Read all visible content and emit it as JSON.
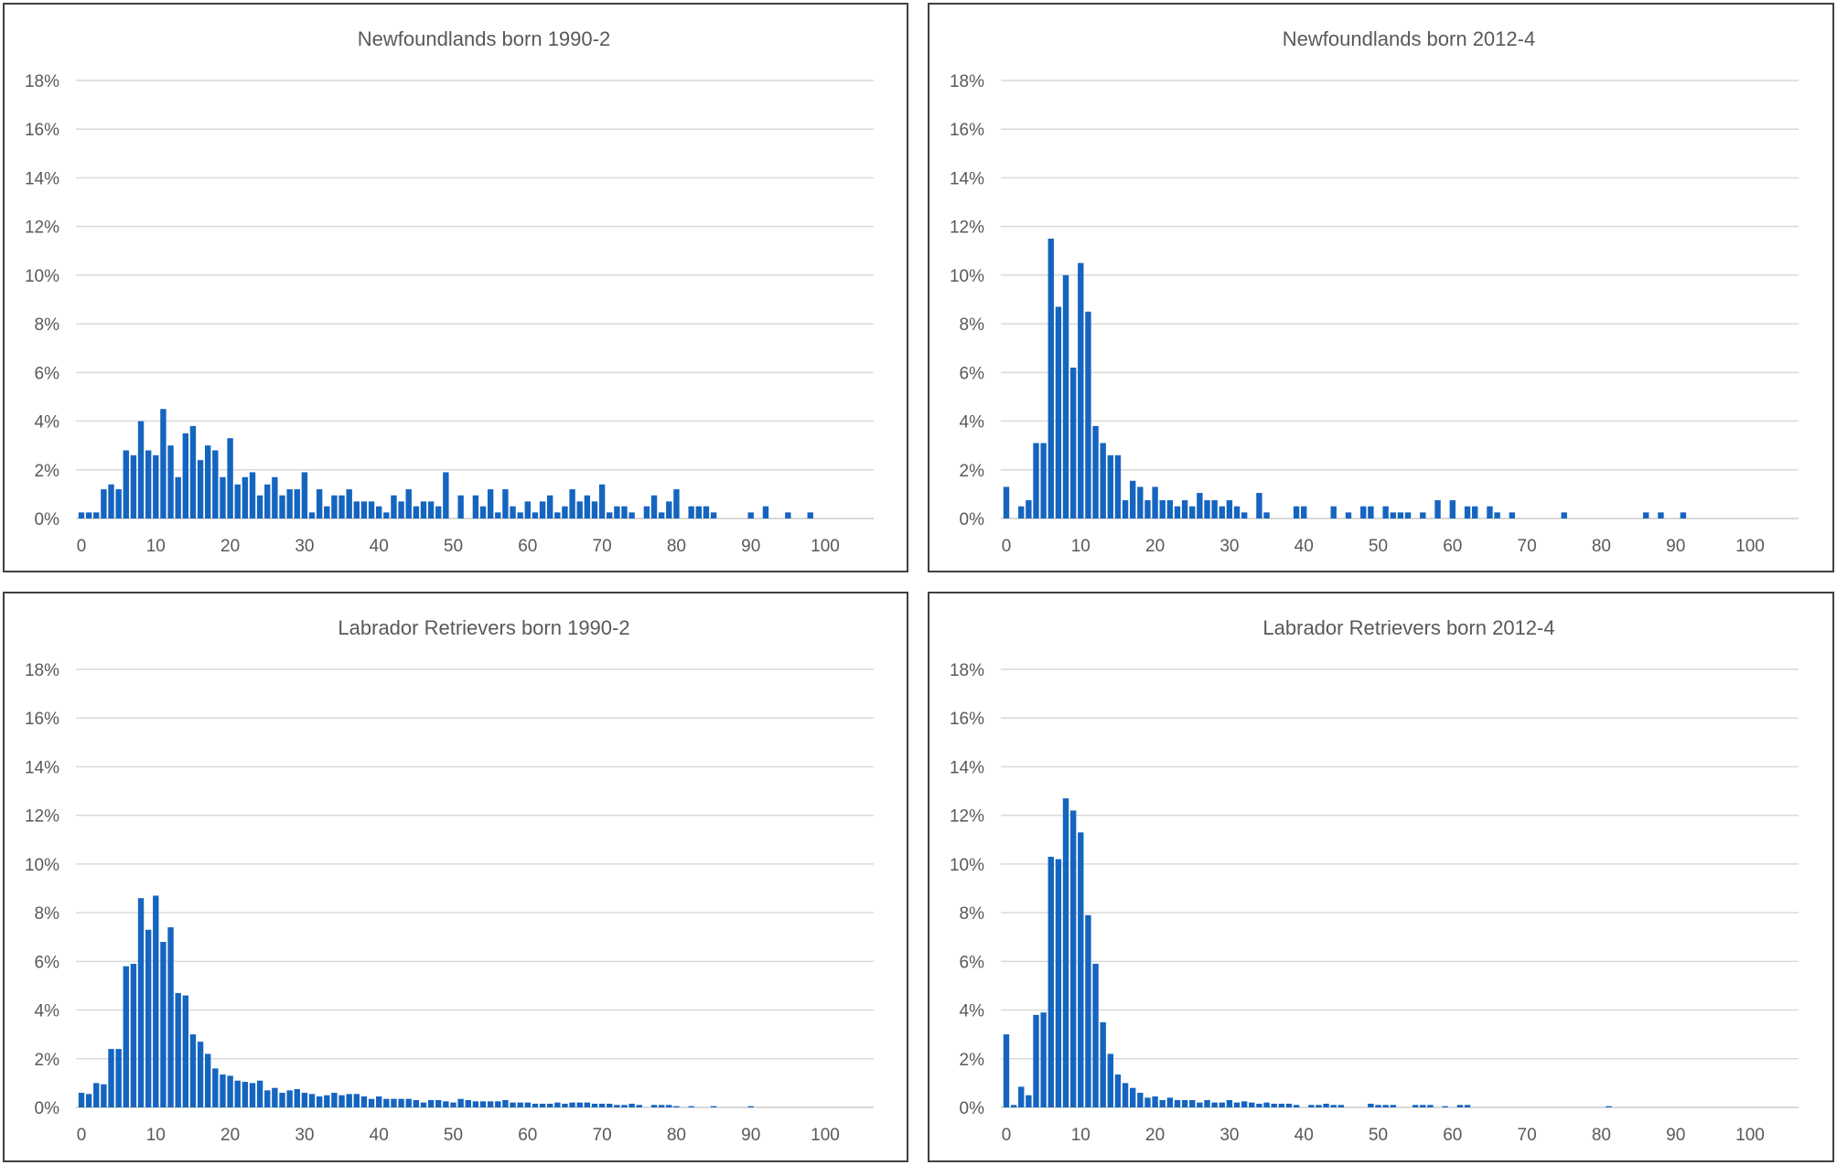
{
  "colors": {
    "bar": "#1565c0",
    "grid": "#d9d9d9",
    "text": "#595959",
    "border": "#404040"
  },
  "chart_data": [
    {
      "type": "bar",
      "title": "Newfoundlands born 1990-2",
      "xlabel": "",
      "ylabel": "",
      "ylim": [
        0,
        18
      ],
      "xlim": [
        0,
        100
      ],
      "x_ticks": [
        "0",
        "10",
        "20",
        "30",
        "40",
        "50",
        "60",
        "70",
        "80",
        "90",
        "100"
      ],
      "y_ticks": [
        "0%",
        "2%",
        "4%",
        "6%",
        "8%",
        "10%",
        "12%",
        "14%",
        "16%",
        "18%"
      ],
      "grid": true,
      "legend": "none",
      "x": [
        0,
        1,
        2,
        3,
        4,
        5,
        6,
        7,
        8,
        9,
        10,
        11,
        12,
        13,
        14,
        15,
        16,
        17,
        18,
        19,
        20,
        21,
        22,
        23,
        24,
        25,
        26,
        27,
        28,
        29,
        30,
        31,
        32,
        33,
        34,
        35,
        36,
        37,
        38,
        39,
        40,
        41,
        42,
        43,
        44,
        45,
        46,
        47,
        48,
        49,
        50,
        51,
        52,
        53,
        54,
        55,
        56,
        57,
        58,
        59,
        60,
        61,
        62,
        63,
        64,
        65,
        66,
        67,
        68,
        69,
        70,
        71,
        72,
        73,
        74,
        75,
        76,
        77,
        78,
        79,
        80,
        81,
        82,
        83,
        84,
        85,
        86,
        87,
        88,
        89,
        90,
        91,
        92,
        93,
        94,
        95,
        96,
        97,
        98,
        99,
        100
      ],
      "values": [
        0.25,
        0.25,
        0.25,
        1.2,
        1.4,
        1.2,
        2.8,
        2.6,
        4.0,
        2.8,
        2.6,
        4.5,
        3.0,
        1.7,
        3.5,
        3.8,
        2.4,
        3.0,
        2.8,
        1.7,
        3.3,
        1.4,
        1.7,
        1.9,
        0.95,
        1.4,
        1.7,
        0.95,
        1.2,
        1.2,
        1.9,
        0.25,
        1.2,
        0.5,
        0.95,
        0.95,
        1.2,
        0.7,
        0.7,
        0.7,
        0.5,
        0.25,
        0.95,
        0.7,
        1.2,
        0.5,
        0.7,
        0.7,
        0.5,
        1.9,
        0,
        0.95,
        0,
        0.95,
        0.5,
        1.2,
        0.25,
        1.2,
        0.5,
        0.25,
        0.7,
        0.25,
        0.7,
        0.95,
        0.25,
        0.5,
        1.2,
        0.7,
        0.95,
        0.7,
        1.4,
        0.25,
        0.5,
        0.5,
        0.25,
        0,
        0.5,
        0.95,
        0.25,
        0.7,
        1.2,
        0,
        0.5,
        0.5,
        0.5,
        0.25,
        0,
        0,
        0,
        0,
        0.25,
        0,
        0.5,
        0,
        0,
        0.25,
        0,
        0,
        0.25,
        0,
        0
      ]
    },
    {
      "type": "bar",
      "title": "Newfoundlands born 2012-4",
      "xlabel": "",
      "ylabel": "",
      "ylim": [
        0,
        18
      ],
      "xlim": [
        0,
        100
      ],
      "x_ticks": [
        "0",
        "10",
        "20",
        "30",
        "40",
        "50",
        "60",
        "70",
        "80",
        "90",
        "100"
      ],
      "y_ticks": [
        "0%",
        "2%",
        "4%",
        "6%",
        "8%",
        "10%",
        "12%",
        "14%",
        "16%",
        "18%"
      ],
      "grid": true,
      "legend": "none",
      "x": [
        0,
        1,
        2,
        3,
        4,
        5,
        6,
        7,
        8,
        9,
        10,
        11,
        12,
        13,
        14,
        15,
        16,
        17,
        18,
        19,
        20,
        21,
        22,
        23,
        24,
        25,
        26,
        27,
        28,
        29,
        30,
        31,
        32,
        33,
        34,
        35,
        36,
        37,
        38,
        39,
        40,
        41,
        42,
        43,
        44,
        45,
        46,
        47,
        48,
        49,
        50,
        51,
        52,
        53,
        54,
        55,
        56,
        57,
        58,
        59,
        60,
        61,
        62,
        63,
        64,
        65,
        66,
        67,
        68,
        69,
        70,
        71,
        72,
        73,
        74,
        75,
        76,
        77,
        78,
        79,
        80,
        81,
        82,
        83,
        84,
        85,
        86,
        87,
        88,
        89,
        90,
        91,
        92,
        93,
        94,
        95,
        96,
        97,
        98,
        99,
        100
      ],
      "values": [
        1.3,
        0,
        0.5,
        0.75,
        3.1,
        3.1,
        11.5,
        8.7,
        10.0,
        6.2,
        10.5,
        8.5,
        3.8,
        3.1,
        2.6,
        2.6,
        0.75,
        1.55,
        1.3,
        0.75,
        1.3,
        0.75,
        0.75,
        0.5,
        0.75,
        0.5,
        1.05,
        0.75,
        0.75,
        0.5,
        0.75,
        0.5,
        0.25,
        0,
        1.05,
        0.25,
        0,
        0,
        0,
        0.5,
        0.5,
        0,
        0,
        0,
        0.5,
        0,
        0.25,
        0,
        0.5,
        0.5,
        0,
        0.5,
        0.25,
        0.25,
        0.25,
        0,
        0.25,
        0,
        0.75,
        0,
        0.75,
        0,
        0.5,
        0.5,
        0,
        0.5,
        0.25,
        0,
        0.25,
        0,
        0,
        0,
        0,
        0,
        0,
        0.25,
        0,
        0,
        0,
        0,
        0,
        0,
        0,
        0,
        0,
        0,
        0.25,
        0,
        0.25,
        0,
        0,
        0.25,
        0,
        0,
        0,
        0,
        0,
        0,
        0,
        0,
        0
      ]
    },
    {
      "type": "bar",
      "title": "Labrador Retrievers born 1990-2",
      "xlabel": "",
      "ylabel": "",
      "ylim": [
        0,
        18
      ],
      "xlim": [
        0,
        100
      ],
      "x_ticks": [
        "0",
        "10",
        "20",
        "30",
        "40",
        "50",
        "60",
        "70",
        "80",
        "90",
        "100"
      ],
      "y_ticks": [
        "0%",
        "2%",
        "4%",
        "6%",
        "8%",
        "10%",
        "12%",
        "14%",
        "16%",
        "18%"
      ],
      "grid": true,
      "legend": "none",
      "x": [
        0,
        1,
        2,
        3,
        4,
        5,
        6,
        7,
        8,
        9,
        10,
        11,
        12,
        13,
        14,
        15,
        16,
        17,
        18,
        19,
        20,
        21,
        22,
        23,
        24,
        25,
        26,
        27,
        28,
        29,
        30,
        31,
        32,
        33,
        34,
        35,
        36,
        37,
        38,
        39,
        40,
        41,
        42,
        43,
        44,
        45,
        46,
        47,
        48,
        49,
        50,
        51,
        52,
        53,
        54,
        55,
        56,
        57,
        58,
        59,
        60,
        61,
        62,
        63,
        64,
        65,
        66,
        67,
        68,
        69,
        70,
        71,
        72,
        73,
        74,
        75,
        76,
        77,
        78,
        79,
        80,
        81,
        82,
        83,
        84,
        85,
        86,
        87,
        88,
        89,
        90,
        91,
        92,
        93,
        94,
        95,
        96,
        97,
        98,
        99,
        100
      ],
      "values": [
        0.6,
        0.55,
        1.0,
        0.95,
        2.4,
        2.4,
        5.8,
        5.9,
        8.6,
        7.3,
        8.7,
        6.8,
        7.4,
        4.7,
        4.6,
        3.0,
        2.7,
        2.2,
        1.6,
        1.35,
        1.3,
        1.1,
        1.05,
        1.0,
        1.1,
        0.7,
        0.8,
        0.6,
        0.7,
        0.75,
        0.6,
        0.55,
        0.45,
        0.5,
        0.6,
        0.5,
        0.55,
        0.55,
        0.45,
        0.35,
        0.45,
        0.35,
        0.35,
        0.35,
        0.35,
        0.3,
        0.2,
        0.3,
        0.3,
        0.25,
        0.2,
        0.35,
        0.3,
        0.25,
        0.25,
        0.25,
        0.25,
        0.3,
        0.2,
        0.2,
        0.2,
        0.15,
        0.15,
        0.15,
        0.2,
        0.15,
        0.2,
        0.2,
        0.2,
        0.15,
        0.15,
        0.15,
        0.1,
        0.1,
        0.15,
        0.1,
        0,
        0.1,
        0.1,
        0.1,
        0.05,
        0,
        0.05,
        0,
        0,
        0.05,
        0,
        0,
        0,
        0,
        0.05,
        0,
        0,
        0,
        0,
        0,
        0,
        0,
        0,
        0,
        0
      ]
    },
    {
      "type": "bar",
      "title": "Labrador Retrievers born 2012-4",
      "xlabel": "",
      "ylabel": "",
      "ylim": [
        0,
        18
      ],
      "xlim": [
        0,
        100
      ],
      "x_ticks": [
        "0",
        "10",
        "20",
        "30",
        "40",
        "50",
        "60",
        "70",
        "80",
        "90",
        "100"
      ],
      "y_ticks": [
        "0%",
        "2%",
        "4%",
        "6%",
        "8%",
        "10%",
        "12%",
        "14%",
        "16%",
        "18%"
      ],
      "grid": true,
      "legend": "none",
      "x": [
        0,
        1,
        2,
        3,
        4,
        5,
        6,
        7,
        8,
        9,
        10,
        11,
        12,
        13,
        14,
        15,
        16,
        17,
        18,
        19,
        20,
        21,
        22,
        23,
        24,
        25,
        26,
        27,
        28,
        29,
        30,
        31,
        32,
        33,
        34,
        35,
        36,
        37,
        38,
        39,
        40,
        41,
        42,
        43,
        44,
        45,
        46,
        47,
        48,
        49,
        50,
        51,
        52,
        53,
        54,
        55,
        56,
        57,
        58,
        59,
        60,
        61,
        62,
        63,
        64,
        65,
        66,
        67,
        68,
        69,
        70,
        71,
        72,
        73,
        74,
        75,
        76,
        77,
        78,
        79,
        80,
        81,
        82,
        83,
        84,
        85,
        86,
        87,
        88,
        89,
        90,
        91,
        92,
        93,
        94,
        95,
        96,
        97,
        98,
        99,
        100
      ],
      "values": [
        3.0,
        0.1,
        0.85,
        0.5,
        3.8,
        3.9,
        10.3,
        10.2,
        12.7,
        12.2,
        11.3,
        7.9,
        5.9,
        3.5,
        2.2,
        1.35,
        1.0,
        0.8,
        0.6,
        0.4,
        0.45,
        0.3,
        0.4,
        0.3,
        0.3,
        0.3,
        0.2,
        0.3,
        0.2,
        0.2,
        0.3,
        0.2,
        0.25,
        0.2,
        0.15,
        0.2,
        0.15,
        0.15,
        0.15,
        0.1,
        0,
        0.1,
        0.1,
        0.15,
        0.1,
        0.1,
        0,
        0,
        0,
        0.15,
        0.1,
        0.1,
        0.1,
        0,
        0,
        0.1,
        0.1,
        0.1,
        0,
        0.05,
        0,
        0.1,
        0.1,
        0,
        0,
        0,
        0,
        0,
        0,
        0,
        0,
        0,
        0,
        0,
        0,
        0,
        0,
        0,
        0,
        0,
        0,
        0.05,
        0,
        0,
        0,
        0,
        0,
        0,
        0,
        0,
        0,
        0,
        0,
        0,
        0,
        0,
        0,
        0,
        0,
        0,
        0
      ]
    }
  ]
}
